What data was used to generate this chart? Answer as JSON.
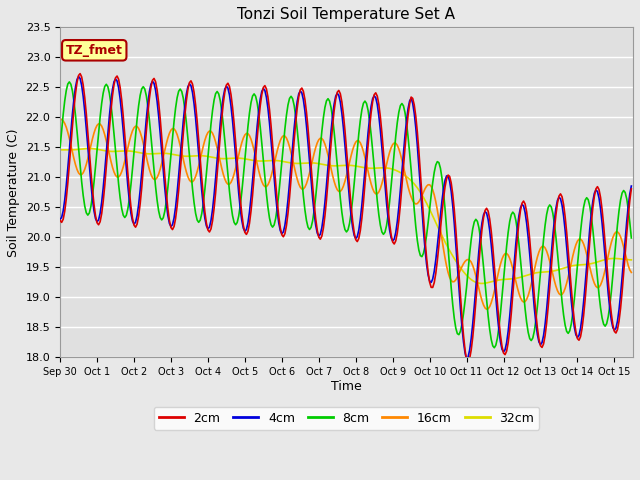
{
  "title": "Tonzi Soil Temperature Set A",
  "xlabel": "Time",
  "ylabel": "Soil Temperature (C)",
  "ylim": [
    18.0,
    23.5
  ],
  "yticks": [
    18.0,
    18.5,
    19.0,
    19.5,
    20.0,
    20.5,
    21.0,
    21.5,
    22.0,
    22.5,
    23.0,
    23.5
  ],
  "fig_bg": "#e8e8e8",
  "plot_bg": "#e0e0e0",
  "line_colors": {
    "2cm": "#dd0000",
    "4cm": "#0000dd",
    "8cm": "#00cc00",
    "16cm": "#ff8800",
    "32cm": "#dddd00"
  },
  "xtick_labels": [
    "Sep 30",
    "Oct 1",
    "Oct 2",
    "Oct 3",
    "Oct 4",
    "Oct 5",
    "Oct 6",
    "Oct 7",
    "Oct 8",
    "Oct 9",
    "Oct 10",
    "Oct 11",
    "Oct 12",
    "Oct 13",
    "Oct 14",
    "Oct 15"
  ],
  "legend_labels": [
    "2cm",
    "4cm",
    "8cm",
    "16cm",
    "32cm"
  ],
  "annotation_text": "TZ_fmet",
  "annotation_bg": "#ffff99",
  "annotation_border": "#aa0000"
}
